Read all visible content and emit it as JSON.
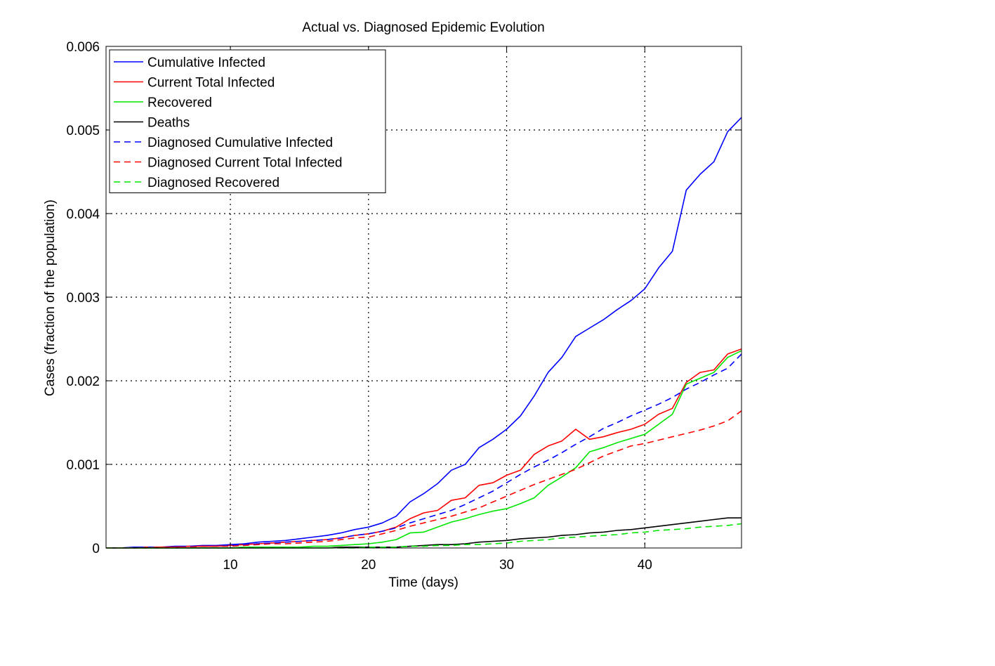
{
  "chart_data": {
    "type": "line",
    "title": "Actual vs. Diagnosed Epidemic Evolution",
    "xlabel": "Time (days)",
    "ylabel": "Cases (fraction of the population)",
    "xlim": [
      1,
      47
    ],
    "ylim": [
      0,
      0.006
    ],
    "xticks": [
      10,
      20,
      30,
      40
    ],
    "xtick_labels": [
      "10",
      "20",
      "30",
      "40"
    ],
    "yticks": [
      0,
      0.001,
      0.002,
      0.003,
      0.004,
      0.005,
      0.006
    ],
    "ytick_labels": [
      "0",
      "0.001",
      "0.002",
      "0.003",
      "0.004",
      "0.005",
      "0.006"
    ],
    "grid": true,
    "legend_position": "top-left",
    "x": [
      1,
      2,
      3,
      4,
      5,
      6,
      7,
      8,
      9,
      10,
      11,
      12,
      13,
      14,
      15,
      16,
      17,
      18,
      19,
      20,
      21,
      22,
      23,
      24,
      25,
      26,
      27,
      28,
      29,
      30,
      31,
      32,
      33,
      34,
      35,
      36,
      37,
      38,
      39,
      40,
      41,
      42,
      43,
      44,
      45,
      46,
      47
    ],
    "series": [
      {
        "name": "Cumulative Infected",
        "color": "#0000ff",
        "dash": "solid",
        "values": [
          0,
          0,
          1e-05,
          1e-05,
          1e-05,
          2e-05,
          2e-05,
          3e-05,
          3e-05,
          4e-05,
          5e-05,
          7e-05,
          8e-05,
          9e-05,
          0.00011,
          0.00013,
          0.00015,
          0.00018,
          0.00022,
          0.00025,
          0.0003,
          0.00038,
          0.00055,
          0.00065,
          0.00077,
          0.00093,
          0.001,
          0.0012,
          0.0013,
          0.00142,
          0.00158,
          0.00182,
          0.0021,
          0.00228,
          0.00253,
          0.00263,
          0.00273,
          0.00285,
          0.00296,
          0.0031,
          0.00335,
          0.00355,
          0.00428,
          0.00447,
          0.00462,
          0.00498,
          0.00515
        ]
      },
      {
        "name": "Current Total Infected",
        "color": "#ff0000",
        "dash": "solid",
        "values": [
          0,
          0,
          0,
          1e-05,
          1e-05,
          1e-05,
          2e-05,
          2e-05,
          2e-05,
          3e-05,
          4e-05,
          5e-05,
          6e-05,
          7e-05,
          8e-05,
          9e-05,
          0.0001,
          0.00012,
          0.00015,
          0.00017,
          0.0002,
          0.00025,
          0.00035,
          0.00042,
          0.00045,
          0.00057,
          0.0006,
          0.00075,
          0.00078,
          0.00087,
          0.00093,
          0.00112,
          0.00122,
          0.00128,
          0.00142,
          0.0013,
          0.00133,
          0.00138,
          0.00142,
          0.00148,
          0.0016,
          0.00167,
          0.00198,
          0.0021,
          0.00213,
          0.00232,
          0.00238
        ]
      },
      {
        "name": "Recovered",
        "color": "#00e600",
        "dash": "solid",
        "values": [
          0,
          0,
          0,
          0,
          0,
          0,
          0,
          0,
          0,
          0,
          1e-05,
          1e-05,
          1e-05,
          1e-05,
          1e-05,
          2e-05,
          2e-05,
          3e-05,
          4e-05,
          5e-05,
          7e-05,
          0.0001,
          0.00018,
          0.00019,
          0.00025,
          0.00031,
          0.00035,
          0.0004,
          0.00044,
          0.00047,
          0.00053,
          0.0006,
          0.00075,
          0.00085,
          0.00096,
          0.00115,
          0.0012,
          0.00126,
          0.00131,
          0.00136,
          0.00148,
          0.0016,
          0.00196,
          0.00203,
          0.0021,
          0.00228,
          0.00236
        ]
      },
      {
        "name": "Deaths",
        "color": "#000000",
        "dash": "solid",
        "values": [
          0,
          0,
          0,
          0,
          0,
          0,
          0,
          0,
          0,
          0,
          0,
          0,
          0,
          0,
          0,
          0,
          0,
          1e-05,
          1e-05,
          1e-05,
          1e-05,
          1e-05,
          2e-05,
          3e-05,
          4e-05,
          4e-05,
          5e-05,
          7e-05,
          8e-05,
          9e-05,
          0.00011,
          0.00012,
          0.00013,
          0.00015,
          0.00016,
          0.00018,
          0.00019,
          0.00021,
          0.00022,
          0.00024,
          0.00026,
          0.00028,
          0.0003,
          0.00032,
          0.00034,
          0.00036,
          0.00036
        ]
      },
      {
        "name": "Diagnosed Cumulative Infected",
        "color": "#0000ff",
        "dash": "dashed",
        "values": [
          0,
          0,
          0,
          1e-05,
          1e-05,
          1e-05,
          2e-05,
          2e-05,
          2e-05,
          3e-05,
          4e-05,
          5e-05,
          6e-05,
          7e-05,
          8e-05,
          9e-05,
          0.0001,
          0.00012,
          0.00015,
          0.00017,
          0.0002,
          0.00024,
          0.0003,
          0.00035,
          0.0004,
          0.00045,
          0.00052,
          0.0006,
          0.00068,
          0.00078,
          0.00088,
          0.00097,
          0.00105,
          0.00114,
          0.00124,
          0.00133,
          0.00143,
          0.0015,
          0.00158,
          0.00165,
          0.00172,
          0.0018,
          0.0019,
          0.00198,
          0.00207,
          0.00215,
          0.00232
        ]
      },
      {
        "name": "Diagnosed Current Total Infected",
        "color": "#ff0000",
        "dash": "dashed",
        "values": [
          0,
          0,
          0,
          0,
          1e-05,
          1e-05,
          1e-05,
          2e-05,
          2e-05,
          2e-05,
          3e-05,
          4e-05,
          5e-05,
          5e-05,
          6e-05,
          7e-05,
          8e-05,
          0.0001,
          0.00012,
          0.00013,
          0.00017,
          0.00021,
          0.00026,
          0.0003,
          0.00034,
          0.00038,
          0.00043,
          0.00048,
          0.00055,
          0.00062,
          0.00069,
          0.00076,
          0.00082,
          0.00088,
          0.00094,
          0.00102,
          0.0011,
          0.00116,
          0.00122,
          0.00125,
          0.00129,
          0.00133,
          0.00137,
          0.00141,
          0.00146,
          0.00152,
          0.00164
        ]
      },
      {
        "name": "Diagnosed Recovered",
        "color": "#00e600",
        "dash": "dashed",
        "values": [
          0,
          0,
          0,
          0,
          0,
          0,
          0,
          0,
          0,
          0,
          0,
          0,
          0,
          0,
          0,
          0,
          0,
          0,
          0,
          1e-05,
          1e-05,
          1e-05,
          2e-05,
          2e-05,
          3e-05,
          3e-05,
          4e-05,
          4e-05,
          5e-05,
          6e-05,
          8e-05,
          9e-05,
          0.0001,
          0.00012,
          0.00013,
          0.00014,
          0.00015,
          0.00016,
          0.00018,
          0.00019,
          0.00021,
          0.00022,
          0.00023,
          0.00025,
          0.00026,
          0.00027,
          0.00029
        ]
      }
    ]
  }
}
